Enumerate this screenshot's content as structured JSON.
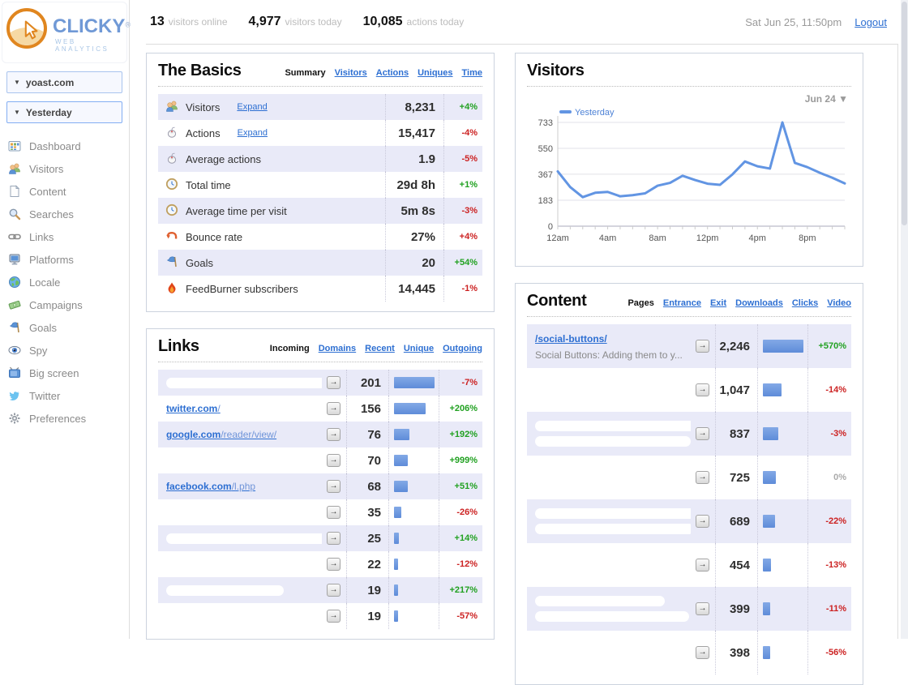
{
  "glyphs": {
    "open_arrow": "→",
    "dropdown_arrow": "▼"
  },
  "header": {
    "logo": {
      "brand": "CLICKY",
      "registered": "®",
      "tagline": "WEB ANALYTICS"
    },
    "stats": [
      {
        "value": "13",
        "label": "visitors online"
      },
      {
        "value": "4,977",
        "label": "visitors today"
      },
      {
        "value": "10,085",
        "label": "actions today"
      }
    ],
    "datetime": "Sat Jun 25, 11:50pm",
    "logout_label": "Logout"
  },
  "sidebar": {
    "site_selector": {
      "label": "yoast.com"
    },
    "date_selector": {
      "label": "Yesterday"
    },
    "items": [
      {
        "icon": "dashboard",
        "label": "Dashboard"
      },
      {
        "icon": "visitors",
        "label": "Visitors"
      },
      {
        "icon": "content",
        "label": "Content"
      },
      {
        "icon": "searches",
        "label": "Searches"
      },
      {
        "icon": "links",
        "label": "Links"
      },
      {
        "icon": "platforms",
        "label": "Platforms"
      },
      {
        "icon": "locale",
        "label": "Locale"
      },
      {
        "icon": "campaigns",
        "label": "Campaigns"
      },
      {
        "icon": "goals",
        "label": "Goals"
      },
      {
        "icon": "spy",
        "label": "Spy"
      },
      {
        "icon": "bigscreen",
        "label": "Big screen"
      },
      {
        "icon": "twitter",
        "label": "Twitter"
      },
      {
        "icon": "preferences",
        "label": "Preferences"
      }
    ]
  },
  "basics": {
    "title": "The Basics",
    "tabs": [
      {
        "label": "Summary",
        "active": true
      },
      {
        "label": "Visitors",
        "active": false
      },
      {
        "label": "Actions",
        "active": false
      },
      {
        "label": "Uniques",
        "active": false
      },
      {
        "label": "Time",
        "active": false
      }
    ],
    "rows": [
      {
        "icon": "visitors",
        "label": "Visitors",
        "expand": "Expand",
        "value": "8,231",
        "change": "+4%",
        "change_color": "green"
      },
      {
        "icon": "mouse",
        "label": "Actions",
        "expand": "Expand",
        "value": "15,417",
        "change": "-4%",
        "change_color": "red"
      },
      {
        "icon": "mouse",
        "label": "Average actions",
        "value": "1.9",
        "change": "-5%",
        "change_color": "red"
      },
      {
        "icon": "clock",
        "label": "Total time",
        "value": "29d 8h",
        "change": "+1%",
        "change_color": "green"
      },
      {
        "icon": "clock",
        "label": "Average time per visit",
        "value": "5m 8s",
        "change": "-3%",
        "change_color": "red"
      },
      {
        "icon": "bounce",
        "label": "Bounce rate",
        "value": "27%",
        "change": "+4%",
        "change_color": "red"
      },
      {
        "icon": "goals",
        "label": "Goals",
        "value": "20",
        "change": "+54%",
        "change_color": "green"
      },
      {
        "icon": "feedburner",
        "label": "FeedBurner subscribers",
        "value": "14,445",
        "change": "-1%",
        "change_color": "red"
      }
    ]
  },
  "visitors_panel": {
    "title": "Visitors",
    "date_dropdown": "Jun 24 ▼",
    "chart_data": {
      "type": "line",
      "title": "Visitors",
      "x": [
        "12am",
        "1am",
        "2am",
        "3am",
        "4am",
        "5am",
        "6am",
        "7am",
        "8am",
        "9am",
        "10am",
        "11am",
        "12pm",
        "1pm",
        "2pm",
        "3pm",
        "4pm",
        "5pm",
        "6pm",
        "7pm",
        "8pm",
        "9pm",
        "10pm",
        "11pm"
      ],
      "xtick_label_every": 4,
      "yticks": [
        0,
        183,
        367,
        550,
        733
      ],
      "ylim": [
        0,
        733
      ],
      "grid": true,
      "legend_position": "top-left",
      "series": [
        {
          "name": "Yesterday",
          "color": "#6295e3",
          "values": [
            387,
            276,
            205,
            236,
            242,
            211,
            219,
            232,
            286,
            306,
            356,
            326,
            300,
            292,
            366,
            457,
            423,
            407,
            733,
            447,
            417,
            377,
            342,
            302
          ]
        }
      ]
    }
  },
  "links": {
    "title": "Links",
    "tabs": [
      {
        "label": "Incoming",
        "active": true
      },
      {
        "label": "Domains",
        "active": false
      },
      {
        "label": "Recent",
        "active": false
      },
      {
        "label": "Unique",
        "active": false
      },
      {
        "label": "Outgoing",
        "active": false
      }
    ],
    "rows": [
      {
        "redaction": "pill",
        "pill_widths": [
          205
        ],
        "count": "201",
        "change": "-7%",
        "change_color": "red"
      },
      {
        "domain": "twitter.com",
        "path": "/",
        "count": "156",
        "change": "+206%",
        "change_color": "green"
      },
      {
        "domain": "google.com",
        "path": "/reader/view/",
        "count": "76",
        "change": "+192%",
        "change_color": "green"
      },
      {
        "redaction": "blank",
        "count": "70",
        "change": "+999%",
        "change_color": "green"
      },
      {
        "domain": "facebook.com",
        "path": "/l.php",
        "count": "68",
        "change": "+51%",
        "change_color": "green"
      },
      {
        "redaction": "blank",
        "count": "35",
        "change": "-26%",
        "change_color": "red"
      },
      {
        "redaction": "pill",
        "pill_widths": [
          200
        ],
        "count": "25",
        "change": "+14%",
        "change_color": "green"
      },
      {
        "redaction": "blank",
        "count": "22",
        "change": "-12%",
        "change_color": "red"
      },
      {
        "redaction": "pill",
        "pill_widths": [
          145
        ],
        "count": "19",
        "change": "+217%",
        "change_color": "green"
      },
      {
        "redaction": "blank",
        "count": "19",
        "change": "-57%",
        "change_color": "red"
      }
    ]
  },
  "content": {
    "title": "Content",
    "tabs": [
      {
        "label": "Pages",
        "active": true
      },
      {
        "label": "Entrance",
        "active": false
      },
      {
        "label": "Exit",
        "active": false
      },
      {
        "label": "Downloads",
        "active": false
      },
      {
        "label": "Clicks",
        "active": false
      },
      {
        "label": "Video",
        "active": false
      }
    ],
    "rows": [
      {
        "link": "/social-buttons/",
        "subtitle": "Social Buttons: Adding them to y...",
        "count": "2,246",
        "change": "+570%",
        "change_color": "green"
      },
      {
        "redaction": "blank",
        "count": "1,047",
        "change": "-14%",
        "change_color": "red"
      },
      {
        "redaction": "pill",
        "pill_widths": [
          212,
          192
        ],
        "count": "837",
        "change": "-3%",
        "change_color": "red"
      },
      {
        "redaction": "blank",
        "count": "725",
        "change": "0%",
        "change_color": "gray"
      },
      {
        "redaction": "pill",
        "pill_widths": [
          215,
          196
        ],
        "count": "689",
        "change": "-22%",
        "change_color": "red"
      },
      {
        "redaction": "blank",
        "count": "454",
        "change": "-13%",
        "change_color": "red"
      },
      {
        "redaction": "pill",
        "pill_widths": [
          160,
          190
        ],
        "count": "399",
        "change": "-11%",
        "change_color": "red"
      },
      {
        "redaction": "pill",
        "pill_widths": [
          190
        ],
        "count": "398",
        "change": "-56%",
        "change_color": "red"
      }
    ]
  }
}
